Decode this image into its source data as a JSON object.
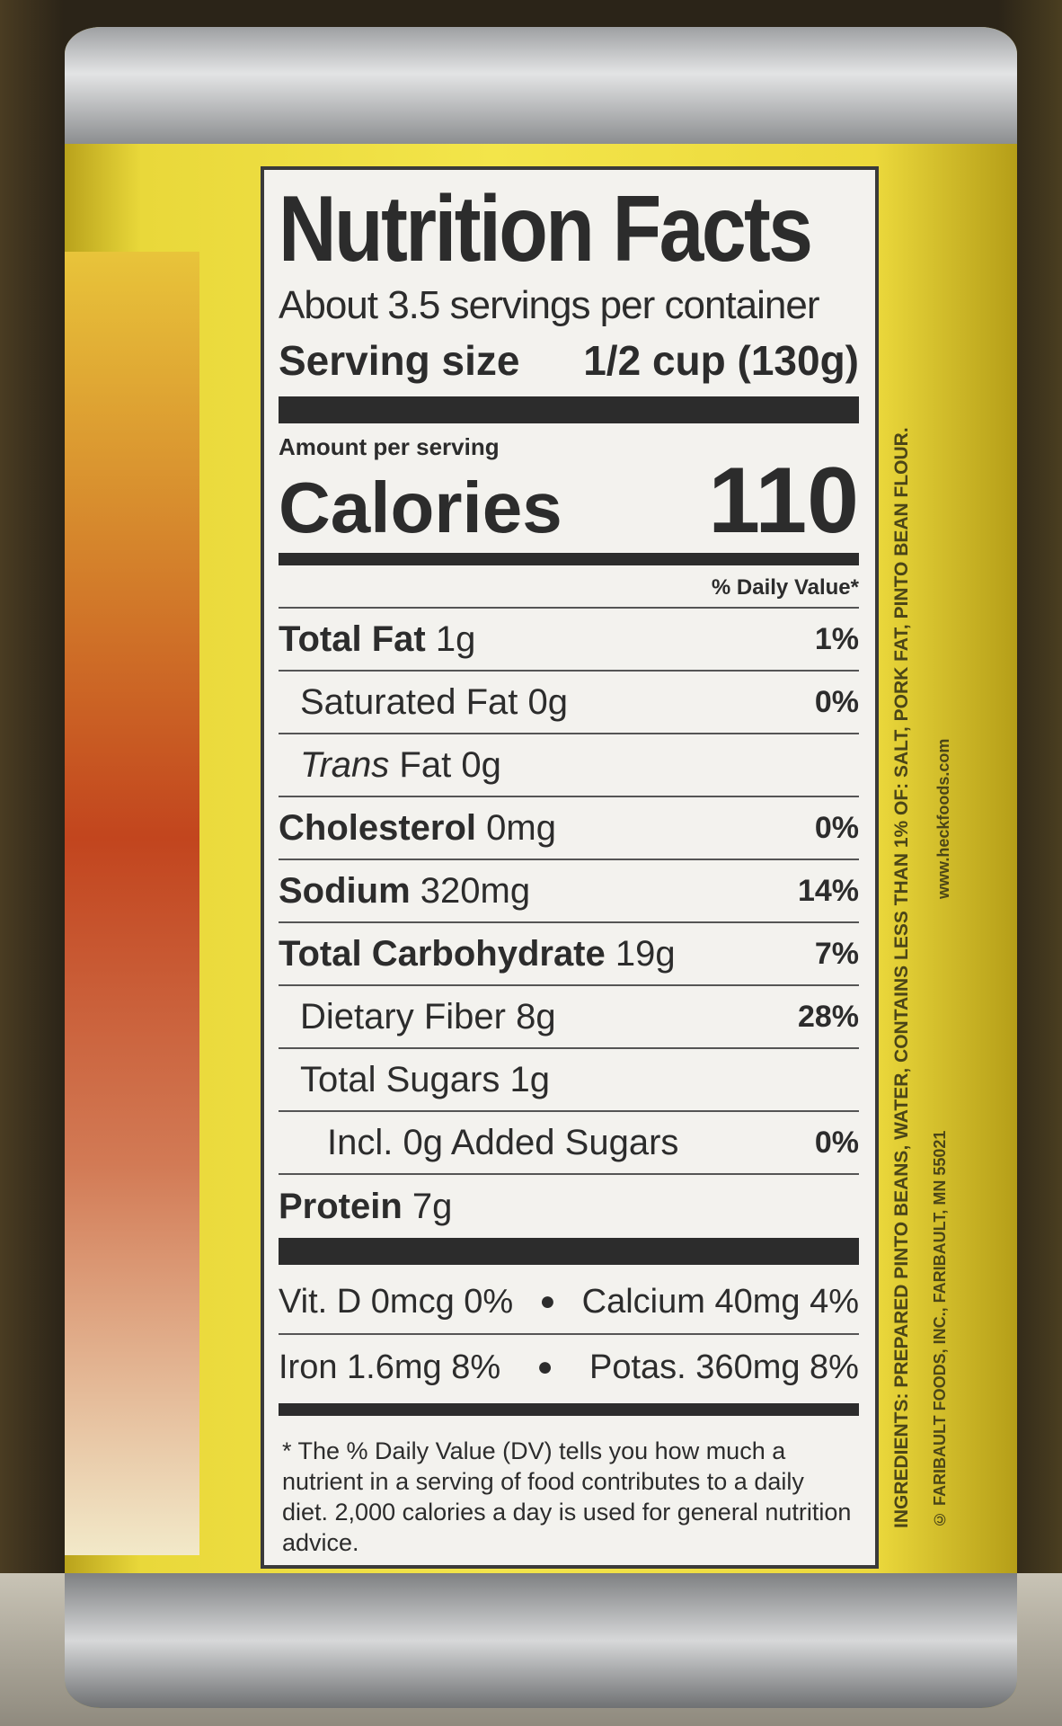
{
  "label": {
    "title": "Nutrition Facts",
    "servings_per_container": "About 3.5 servings per container",
    "serving_size_label": "Serving size",
    "serving_size_value": "1/2 cup (130g)",
    "amount_per_serving": "Amount per serving",
    "calories_label": "Calories",
    "calories_value": "110",
    "daily_value_header": "% Daily Value*",
    "nutrients": [
      {
        "name": "Total Fat",
        "amount": "1g",
        "dv": "1%"
      },
      {
        "name": "Saturated Fat",
        "amount": "0g",
        "dv": "0%"
      },
      {
        "name": "Trans",
        "name_rest": "Fat",
        "amount": "0g",
        "dv": ""
      },
      {
        "name": "Cholesterol",
        "amount": "0mg",
        "dv": "0%"
      },
      {
        "name": "Sodium",
        "amount": "320mg",
        "dv": "14%"
      },
      {
        "name": "Total Carbohydrate",
        "amount": "19g",
        "dv": "7%"
      },
      {
        "name": "Dietary Fiber",
        "amount": "8g",
        "dv": "28%"
      },
      {
        "name": "Total Sugars",
        "amount": "1g",
        "dv": ""
      },
      {
        "name": "Incl. 0g Added Sugars",
        "amount": "",
        "dv": "0%"
      },
      {
        "name": "Protein",
        "amount": "7g",
        "dv": ""
      }
    ],
    "vitamins": [
      {
        "left": "Vit. D 0mcg 0%",
        "right": "Calcium 40mg 4%"
      },
      {
        "left": "Iron 1.6mg 8%",
        "right": "Potas. 360mg 8%"
      }
    ],
    "footnote": "* The % Daily Value (DV) tells you how much a nutrient in a serving of food contributes to a daily diet. 2,000 calories a day is used for general nutrition advice."
  },
  "side_text": {
    "ingredients": "INGREDIENTS: PREPARED PINTO BEANS, WATER, CONTAINS LESS THAN 1% OF: SALT, PORK FAT, PINTO BEAN FLOUR.",
    "copyright": "© FARIBAULT FOODS, INC., FARIBAULT, MN 55021",
    "website": "www.heckfoods.com"
  },
  "colors": {
    "can_yellow": "#f3e54a",
    "label_bg": "#f3f2ee",
    "ink": "#2c2c2c"
  }
}
